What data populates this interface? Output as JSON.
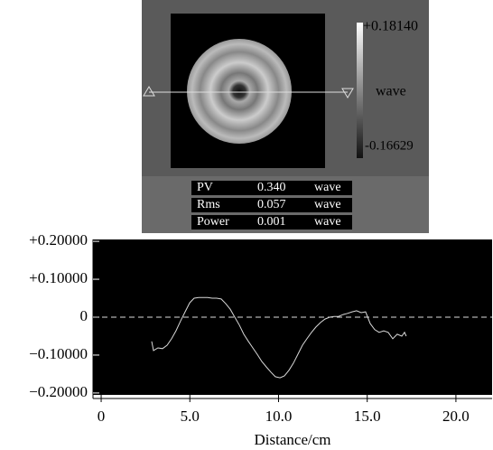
{
  "interferogram": {
    "colorbar_max": "+0.18140",
    "colorbar_min": "-0.16629",
    "unit": "wave"
  },
  "stats": {
    "rows": [
      [
        "PV",
        "0.340",
        "wave"
      ],
      [
        "Rms",
        "0.057",
        "wave"
      ],
      [
        "Power",
        "0.001",
        "wave"
      ]
    ]
  },
  "chart_data": {
    "type": "line",
    "x_label": "Distance/cm",
    "xlim": [
      -0.46,
      22.04
    ],
    "ylim": [
      -0.205,
      0.205
    ],
    "xticks": [
      0,
      {
        "value": 5,
        "label": "5.0"
      },
      {
        "value": 10,
        "label": "10.0"
      },
      {
        "value": 15,
        "label": "15.0"
      },
      {
        "value": 20,
        "label": "20.0"
      }
    ],
    "yticks": [
      {
        "value": 0.2,
        "label": "+0.20000"
      },
      {
        "value": 0.1,
        "label": "+0.10000"
      },
      0,
      {
        "value": -0.1,
        "label": "−0.10000"
      },
      {
        "value": -0.2,
        "label": "−0.20000"
      }
    ],
    "series": [
      {
        "color": "#d8d8d8",
        "x": [
          2.85,
          2.95,
          3.2,
          3.46,
          3.72,
          3.97,
          4.22,
          4.48,
          4.73,
          4.99,
          5.24,
          5.5,
          5.75,
          6.0,
          6.26,
          6.51,
          6.77,
          7.02,
          7.28,
          7.53,
          7.79,
          8.04,
          8.3,
          8.55,
          8.8,
          9.06,
          9.31,
          9.57,
          9.82,
          10.08,
          10.33,
          10.59,
          10.84,
          11.09,
          11.35,
          11.6,
          11.86,
          12.11,
          12.37,
          12.62,
          12.88,
          13.13,
          13.38,
          13.64,
          13.89,
          14.15,
          14.4,
          14.66,
          14.91,
          15.17,
          15.42,
          15.67,
          15.93,
          16.18,
          16.44,
          16.69,
          16.95,
          17.1,
          17.2
        ],
        "values": [
          -0.064,
          -0.088,
          -0.081,
          -0.083,
          -0.074,
          -0.057,
          -0.036,
          -0.01,
          0.014,
          0.038,
          0.05,
          0.052,
          0.052,
          0.052,
          0.05,
          0.05,
          0.048,
          0.036,
          0.021,
          0.0,
          -0.021,
          -0.045,
          -0.064,
          -0.081,
          -0.098,
          -0.117,
          -0.131,
          -0.145,
          -0.157,
          -0.16,
          -0.155,
          -0.14,
          -0.121,
          -0.098,
          -0.074,
          -0.057,
          -0.04,
          -0.026,
          -0.014,
          -0.005,
          0.0,
          0.002,
          0.002,
          0.007,
          0.01,
          0.014,
          0.017,
          0.012,
          0.014,
          -0.017,
          -0.033,
          -0.04,
          -0.036,
          -0.04,
          -0.057,
          -0.045,
          -0.05,
          -0.04,
          -0.05
        ]
      }
    ]
  }
}
